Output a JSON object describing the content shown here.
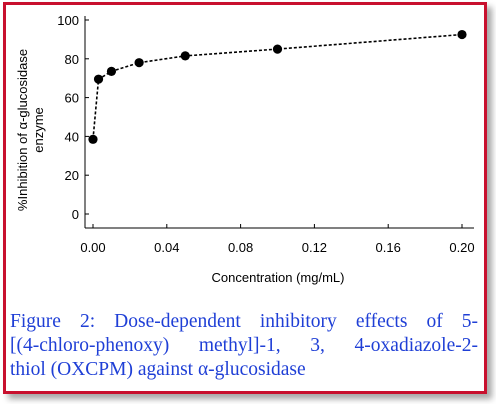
{
  "chart_data": {
    "type": "line",
    "xlabel": "Concentration (mg/mL)",
    "ylabel_lines": [
      "%Inhibition of α-glucosidase",
      "enzyme"
    ],
    "xlim": [
      0,
      0.2
    ],
    "ylim": [
      0,
      100
    ],
    "xticks": [
      "0.00",
      "0.04",
      "0.08",
      "0.12",
      "0.16",
      "0.20"
    ],
    "xtick_values": [
      0,
      0.04,
      0.08,
      0.12,
      0.16,
      0.2
    ],
    "yticks": [
      "0",
      "20",
      "40",
      "60",
      "80",
      "100"
    ],
    "ytick_values": [
      0,
      20,
      40,
      60,
      80,
      100
    ],
    "grid": false,
    "line_style": "dashed",
    "marker": "filled-circle",
    "series_color": "#000000",
    "x": [
      0.0,
      0.003,
      0.01,
      0.025,
      0.05,
      0.1,
      0.2
    ],
    "y": [
      38.5,
      69.5,
      73.5,
      78,
      81.5,
      85,
      92.5
    ]
  },
  "caption": {
    "lines": [
      "Figure 2: Dose-dependent inhibitory effects of 5-",
      "[(4-chloro-phenoxy) methyl]-1, 3, 4-oxadiazole-2-",
      "thiol (OXCPM) against α-glucosidase"
    ],
    "color": "#1f3fd6"
  },
  "frame": {
    "border_color": "#c8102e"
  }
}
